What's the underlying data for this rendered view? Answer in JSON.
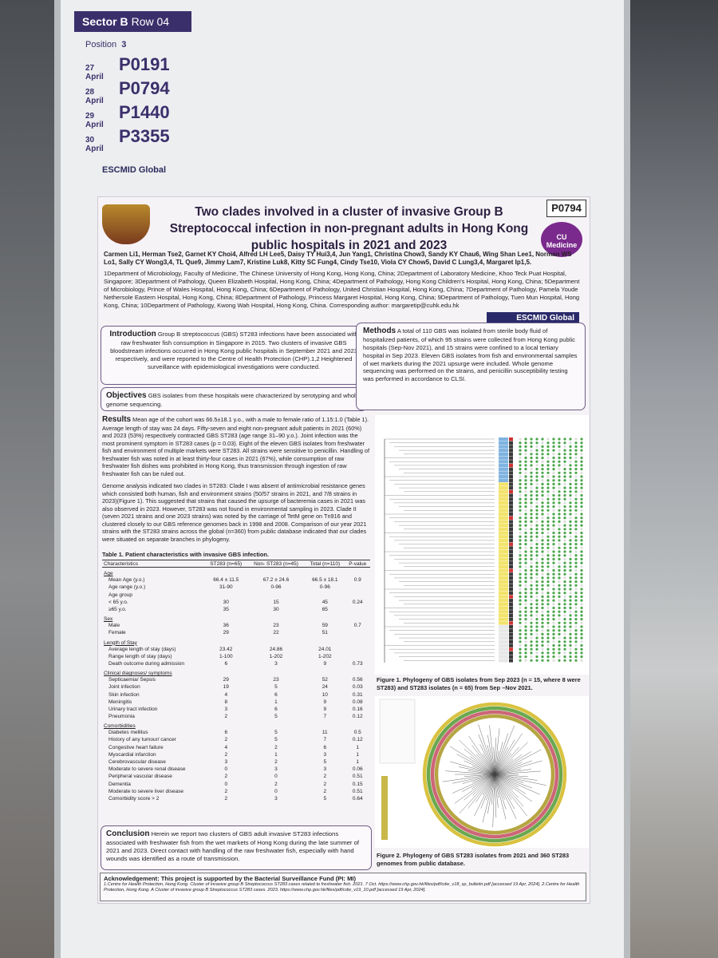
{
  "board": {
    "sector": "Sector B",
    "row": "Row 04",
    "position_label": "Position",
    "position": "3",
    "sessions": [
      {
        "date": "27 April",
        "code": "P0191"
      },
      {
        "date": "28 April",
        "code": "P0794"
      },
      {
        "date": "29 April",
        "code": "P1440"
      },
      {
        "date": "30 April",
        "code": "P3355"
      }
    ],
    "logo": "ESCMID Global"
  },
  "poster": {
    "code": "P0794",
    "title": "Two clades involved in a cluster of invasive Group B Streptococcal infection in non-pregnant adults in Hong Kong public hospitals in 2021 and 2023",
    "logo": "CU Medicine",
    "authors": "Carmen Li1, Herman Tse2, Garnet KY Choi4, Alfred LH Lee5, Daisy TY Hui3,4, Jun Yang1, Christina Chow3, Sandy KY Chau6, Wing Shan Lee1, Norman WS Lo1, Sally CY Wong3,4, TL Que9, Jimmy Lam7, Kristine Luk8, Kitty SC Fung4, Cindy Tse10, Viola CY Chow5, David C Lung3,4, Margaret Ip1,5.",
    "affiliations": "1Department of Microbiology, Faculty of Medicine, The Chinese University of Hong Kong, Hong Kong, China; 2Department of Laboratory Medicine, Khoo Teck Puat Hospital, Singapore; 3Department of Pathology, Queen Elizabeth Hospital, Hong Kong, China; 4Department of Pathology, Hong Kong Children's Hospital, Hong Kong, China; 5Department of Microbiology, Prince of Wales Hospital, Hong Kong, China; 6Department of Pathology, United Christian Hospital, Hong Kong, China; 7Department of Pathology, Pamela Youde Nethersole Eastern Hospital, Hong Kong, China; 8Department of Pathology, Princess Margaret Hospital, Hong Kong, China; 9Department of Pathology, Tuen Mun Hospital, Hong Kong, China; 10Department of Pathology, Kwong Wah Hospital, Hong Kong, China. Corresponding author: margaretip@cuhk.edu.hk",
    "escmid": "ESCMID Global",
    "introduction": {
      "heading": "Introduction",
      "text": "Group B streptococcus (GBS) ST283 infections have been associated with raw freshwater fish consumption in Singapore in 2015. Two clusters of invasive GBS bloodstream infections occurred in Hong Kong public hospitals in September 2021 and 2023 respectively, and were reported to the Centre of Health Protection (CHP).1,2 Heightened surveillance with epidemiological investigations were conducted."
    },
    "objectives": {
      "heading": "Objectives",
      "text": "GBS isolates from these hospitals were characterized by serotyping and whole genome sequencing."
    },
    "methods": {
      "heading": "Methods",
      "text": "A total of 110 GBS was isolated from sterile body fluid of hospitalized patients, of which 95 strains were collected from Hong Kong public hospitals (Sep-Nov 2021), and 15 strains were confined to a local tertiary hospital in Sep 2023. Eleven GBS isolates from fish and environmental samples of wet markets during the 2021 upsurge were included. Whole genome sequencing was performed on the strains, and penicillin susceptibility testing was performed in accordance to CLSI."
    },
    "results": {
      "heading": "Results",
      "paragraphs": [
        "Mean age of the cohort was 66.5±18.1 y.o., with a male to female ratio of 1.15:1.0 (Table 1). Average length of stay was 24 days. Fifty-seven and eight non-pregnant adult patients in 2021 (60%) and 2023 (53%) respectively contracted GBS ST283 (age range 31–90 y.o.). Joint infection was the most prominent symptom in ST283 cases (p = 0.03). Eight of the eleven GBS isolates from freshwater fish and environment of multiple markets were ST283. All strains were sensitive to penicillin. Handling of freshwater fish was noted in at least thirty-four cases in 2021 (67%), while consumption of raw freshwater fish dishes was prohibited in Hong Kong, thus transmission through ingestion of raw freshwater fish can be ruled out.",
        "Genome analysis indicated two clades in ST283: Clade I was absent of antimicrobial resistance genes which consisted both human, fish and environment strains (50/57 strains in 2021, and 7/8 strains in 2023)(Figure 1). This suggested that strains that caused the upsurge of bacteremia cases in 2021 was also observed in 2023. However, ST283 was not found in environmental sampling in 2023. Clade II (seven 2021 strains and one 2023 strains) was noted by the carriage of TetM gene on Tn916 and clustered closely to our GBS reference genomes back in 1998 and 2008. Comparison of our year 2021 strains with the ST283 strains across the global (n=360) from public database indicated that our clades were situated on separate branches in phylogeny."
      ]
    },
    "table": {
      "title": "Table 1. Patient characteristics with invasive GBS infection.",
      "columns": [
        "Characteristics",
        "ST283 (n=65)",
        "Non- ST283 (n=45)",
        "Total (n=110)",
        "P-value"
      ],
      "rows": [
        {
          "section": "Age"
        },
        {
          "label": "Mean Age (y.o.)",
          "cells": [
            "66.4 ± 11.5",
            "67.2 ± 24.6",
            "66.5 ± 18.1",
            "0.9"
          ]
        },
        {
          "label": "Age range (y.o.)",
          "cells": [
            "31-90",
            "0-96",
            "0-96"
          ]
        },
        {
          "label": "Age group"
        },
        {
          "label": "< 65 y.o.",
          "cells": [
            "30",
            "15",
            "45",
            "0.24"
          ]
        },
        {
          "label": "≥65 y.o.",
          "cells": [
            "35",
            "30",
            "65"
          ]
        },
        {
          "section": "Sex"
        },
        {
          "label": "Male",
          "cells": [
            "36",
            "23",
            "59",
            "0.7"
          ]
        },
        {
          "label": "Female",
          "cells": [
            "29",
            "22",
            "51"
          ]
        },
        {
          "section": "Length of Stay"
        },
        {
          "label": "Average length of stay (days)",
          "cells": [
            "23.42",
            "24.86",
            "24.01"
          ]
        },
        {
          "label": "Range length of stay (days)",
          "cells": [
            "1-100",
            "1-202",
            "1-202"
          ]
        },
        {
          "label": "Death outcome during admission",
          "cells": [
            "6",
            "3",
            "9",
            "0.73"
          ]
        },
        {
          "section": "Clinical diagnoses/ symptoms"
        },
        {
          "label": "Septicaemia/ Sepsis",
          "cells": [
            "29",
            "23",
            "52",
            "0.56"
          ]
        },
        {
          "label": "Joint infection",
          "cells": [
            "19",
            "5",
            "24",
            "0.03"
          ]
        },
        {
          "label": "Skin infection",
          "cells": [
            "4",
            "6",
            "10",
            "0.31"
          ]
        },
        {
          "label": "Meningitis",
          "cells": [
            "8",
            "1",
            "9",
            "0.08"
          ]
        },
        {
          "label": "Urinary tract infection",
          "cells": [
            "3",
            "6",
            "9",
            "0.16"
          ]
        },
        {
          "label": "Pneumonia",
          "cells": [
            "2",
            "5",
            "7",
            "0.12"
          ]
        },
        {
          "section": "Comorbidities"
        },
        {
          "label": "Diabetes mellitus",
          "cells": [
            "6",
            "5",
            "11",
            "0.5"
          ]
        },
        {
          "label": "History of any tumour/ cancer",
          "cells": [
            "2",
            "5",
            "7",
            "0.12"
          ]
        },
        {
          "label": "Congestive heart failure",
          "cells": [
            "4",
            "2",
            "6",
            "1"
          ]
        },
        {
          "label": "Myocardial infarction",
          "cells": [
            "2",
            "1",
            "3",
            "1"
          ]
        },
        {
          "label": "Cerebrovascular disease",
          "cells": [
            "3",
            "2",
            "5",
            "1"
          ]
        },
        {
          "label": "Moderate to severe renal disease",
          "cells": [
            "0",
            "3",
            "3",
            "0.06"
          ]
        },
        {
          "label": "Peripheral vascular disease",
          "cells": [
            "2",
            "0",
            "2",
            "0.51"
          ]
        },
        {
          "label": "Dementia",
          "cells": [
            "0",
            "2",
            "2",
            "0.15"
          ]
        },
        {
          "label": "Moderate to severe liver disease",
          "cells": [
            "2",
            "0",
            "2",
            "0.51"
          ]
        },
        {
          "label": "Comorbidity score > 2",
          "cells": [
            "2",
            "3",
            "5",
            "0.64"
          ]
        }
      ]
    },
    "figure1_caption": "Figure 1. Phylogeny of GBS isolates from Sep 2023 (n = 15, where 8 were ST283) and ST283 isolates (n = 65) from Sep –Nov 2021.",
    "figure2_caption": "Figure 2. Phylogeny of GBS ST283 isolates from 2021 and 360 ST283 genomes from public database.",
    "conclusion": {
      "heading": "Conclusion",
      "text": "Herein we report two clusters of GBS adult invasive ST283 infections associated with freshwater fish from the wet markets of Hong Kong during the late summer of 2021 and 2023. Direct contact with handling of the raw freshwater fish, especially with hand wounds was identified as a route of transmission."
    },
    "acknowledgement": "Acknowledgement: This project is supported by the Bacterial Surveillance Fund (PI: MI)",
    "references": "1.Centre for Health Protection, Hong Kong. Cluster of invasive group B Streptococcus ST283 cases related to freshwater fish. 2021. 7 Oct. https://www.chp.gov.hk/files/pdf/cdw_v18_sp_bulletin.pdf [accessed 19 Apr, 2024]. 2.Centre for Health Protection, Hong Kong. A Cluster of invasive group B Streptococcus ST283 cases. 2023. https://www.chp.gov.hk/files/pdf/cdw_v19_10.pdf [accessed 19 Apr, 2024]."
  }
}
